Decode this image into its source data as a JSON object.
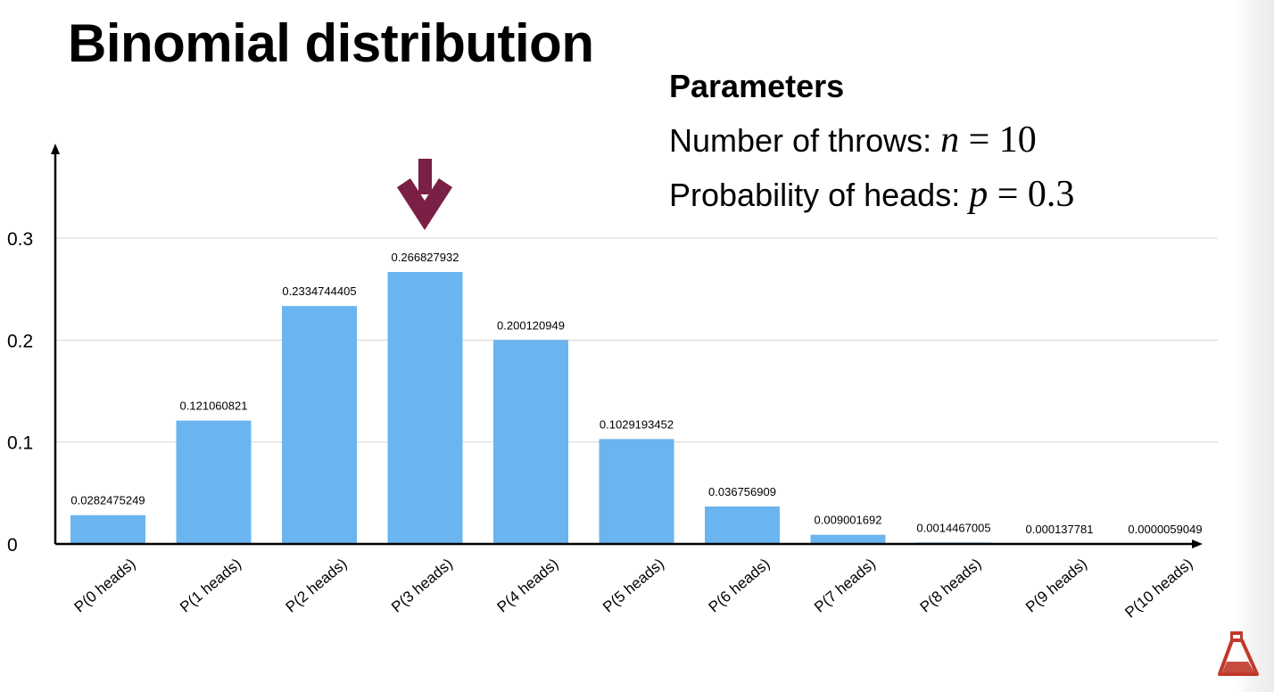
{
  "slide": {
    "title": "Binomial distribution"
  },
  "parameters": {
    "heading": "Parameters",
    "throws_label": "Number of throws: ",
    "throws_var": "n",
    "throws_eq": " = ",
    "throws_value": "10",
    "prob_label": "Probability of heads: ",
    "prob_var": "p",
    "prob_eq": " = ",
    "prob_value": "0.3"
  },
  "colors": {
    "bar": "#6ab4f0",
    "arrow": "#7a1f45",
    "grid": "#d6d6d6",
    "axis": "#000000",
    "logo": "#c0392b"
  },
  "icons": {
    "highlight": "down-arrow-icon",
    "logo": "flask-logo-icon"
  },
  "chart_data": {
    "type": "bar",
    "categories": [
      "P(0 heads)",
      "P(1 heads)",
      "P(2 heads)",
      "P(3 heads)",
      "P(4 heads)",
      "P(5 heads)",
      "P(6 heads)",
      "P(7 heads)",
      "P(8 heads)",
      "P(9 heads)",
      "P(10 heads)"
    ],
    "values": [
      0.0282475249,
      0.121060821,
      0.2334744405,
      0.266827932,
      0.200120949,
      0.1029193452,
      0.036756909,
      0.009001692,
      0.0014467005,
      0.000137781,
      5.9049e-06
    ],
    "value_labels": [
      "0.0282475249",
      "0.121060821",
      "0.2334744405",
      "0.266827932",
      "0.200120949",
      "0.1029193452",
      "0.036756909",
      "0.009001692",
      "0.0014467005",
      "0.000137781",
      "0.0000059049"
    ],
    "yticks": [
      0,
      0.1,
      0.2,
      0.3
    ],
    "ytick_labels": [
      "0",
      "0.1",
      "0.2",
      "0.3"
    ],
    "ylim": [
      0,
      0.3
    ],
    "grid": true,
    "highlighted_category": "P(3 heads)"
  }
}
